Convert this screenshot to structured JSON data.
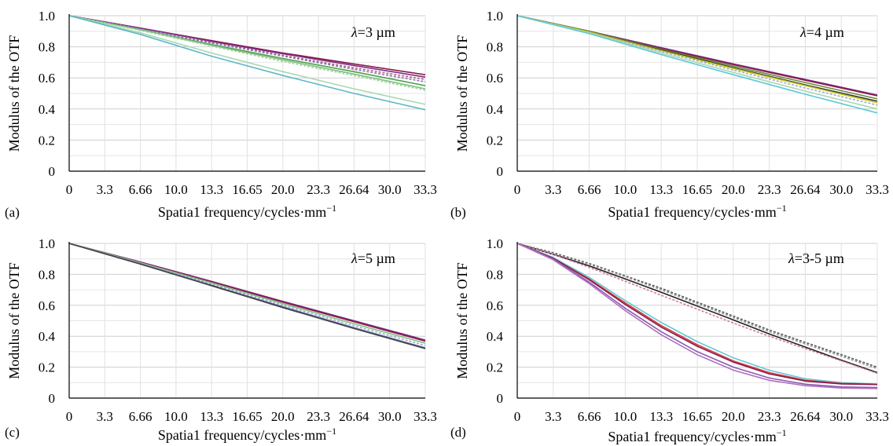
{
  "chart_data": [
    {
      "type": "line",
      "panel_label": "(a)",
      "annotation": {
        "symbol": "λ",
        "text": "=3 µm"
      },
      "xlabel": "Spatia1 frequency/cycles·mm",
      "xlabel_sup": "−1",
      "ylabel": "Modulus of the OTF",
      "x_ticks": [
        "0",
        "3.3",
        "6.66",
        "10.0",
        "13.3",
        "16.65",
        "20.0",
        "23.3",
        "26.64",
        "30.0",
        "33.3"
      ],
      "y_ticks": [
        "0",
        "0.2",
        "0.4",
        "0.6",
        "0.8",
        "1.0"
      ],
      "xlim": [
        0,
        33.3
      ],
      "ylim": [
        0,
        1.0
      ],
      "grid": true,
      "series": [
        {
          "color": "#8b1a4a",
          "dash": "",
          "x": [
            0,
            6.66,
            13.3,
            20.0,
            26.64,
            33.3
          ],
          "y": [
            1.0,
            0.92,
            0.84,
            0.76,
            0.69,
            0.62
          ]
        },
        {
          "color": "#7a2a8a",
          "dash": "",
          "x": [
            0,
            6.66,
            13.3,
            20.0,
            26.64,
            33.3
          ],
          "y": [
            1.0,
            0.92,
            0.835,
            0.755,
            0.68,
            0.605
          ]
        },
        {
          "color": "#b5607a",
          "dash": "3,2",
          "x": [
            0,
            6.66,
            13.3,
            20.0,
            26.64,
            33.3
          ],
          "y": [
            1.0,
            0.915,
            0.83,
            0.745,
            0.665,
            0.59
          ]
        },
        {
          "color": "#8d6fb0",
          "dash": "3,2",
          "x": [
            0,
            6.66,
            13.3,
            20.0,
            26.64,
            33.3
          ],
          "y": [
            1.0,
            0.915,
            0.825,
            0.74,
            0.655,
            0.575
          ]
        },
        {
          "color": "#4aa04a",
          "dash": "",
          "x": [
            0,
            6.66,
            13.3,
            20.0,
            26.64,
            33.3
          ],
          "y": [
            1.0,
            0.91,
            0.815,
            0.725,
            0.64,
            0.55
          ]
        },
        {
          "color": "#7fbf7f",
          "dash": "",
          "x": [
            0,
            6.66,
            13.3,
            20.0,
            26.64,
            33.3
          ],
          "y": [
            1.0,
            0.91,
            0.81,
            0.715,
            0.625,
            0.53
          ]
        },
        {
          "color": "#9fd3a0",
          "dash": "3,2",
          "x": [
            0,
            6.66,
            13.3,
            20.0,
            26.64,
            33.3
          ],
          "y": [
            1.0,
            0.905,
            0.805,
            0.705,
            0.615,
            0.52
          ]
        },
        {
          "color": "#a8d8b0",
          "dash": "",
          "x": [
            0,
            6.66,
            13.3,
            20.0,
            26.64,
            33.3
          ],
          "y": [
            1.0,
            0.89,
            0.76,
            0.64,
            0.53,
            0.43
          ]
        },
        {
          "color": "#5fb8c8",
          "dash": "",
          "x": [
            0,
            6.66,
            13.3,
            20.0,
            26.64,
            33.3
          ],
          "y": [
            1.0,
            0.88,
            0.74,
            0.615,
            0.5,
            0.395
          ]
        }
      ]
    },
    {
      "type": "line",
      "panel_label": "(b)",
      "annotation": {
        "symbol": "λ",
        "text": "=4 µm"
      },
      "xlabel": "Spatia1 frequency/cycles·mm",
      "xlabel_sup": "−1",
      "ylabel": "Modulus of the OTF",
      "x_ticks": [
        "0",
        "3.3",
        "6.66",
        "10.0",
        "13.3",
        "16.65",
        "20.0",
        "23.3",
        "26.64",
        "30.0",
        "33.3"
      ],
      "y_ticks": [
        "0",
        "0.2",
        "0.4",
        "0.6",
        "0.8",
        "1.0"
      ],
      "xlim": [
        0,
        33.3
      ],
      "ylim": [
        0,
        1.0
      ],
      "grid": true,
      "series": [
        {
          "color": "#7a2a8a",
          "dash": "",
          "x": [
            0,
            6.66,
            13.3,
            20.0,
            26.64,
            33.3
          ],
          "y": [
            1.0,
            0.9,
            0.795,
            0.69,
            0.59,
            0.49
          ]
        },
        {
          "color": "#8b1a4a",
          "dash": "",
          "x": [
            0,
            6.66,
            13.3,
            20.0,
            26.64,
            33.3
          ],
          "y": [
            1.0,
            0.9,
            0.79,
            0.685,
            0.585,
            0.485
          ]
        },
        {
          "color": "#6a8a3a",
          "dash": "",
          "x": [
            0,
            6.66,
            13.3,
            20.0,
            26.64,
            33.3
          ],
          "y": [
            1.0,
            0.9,
            0.785,
            0.675,
            0.57,
            0.465
          ]
        },
        {
          "color": "#333333",
          "dash": "",
          "x": [
            0,
            6.66,
            13.3,
            20.0,
            26.64,
            33.3
          ],
          "y": [
            1.0,
            0.895,
            0.78,
            0.665,
            0.555,
            0.45
          ]
        },
        {
          "color": "#c8c820",
          "dash": "",
          "x": [
            0,
            6.66,
            13.3,
            20.0,
            26.64,
            33.3
          ],
          "y": [
            1.0,
            0.895,
            0.775,
            0.66,
            0.55,
            0.44
          ]
        },
        {
          "color": "#9fa8c8",
          "dash": "3,2",
          "x": [
            0,
            6.66,
            13.3,
            20.0,
            26.64,
            33.3
          ],
          "y": [
            1.0,
            0.89,
            0.77,
            0.65,
            0.535,
            0.425
          ]
        },
        {
          "color": "#a8d8b0",
          "dash": "",
          "x": [
            0,
            6.66,
            13.3,
            20.0,
            26.64,
            33.3
          ],
          "y": [
            1.0,
            0.89,
            0.76,
            0.635,
            0.515,
            0.4
          ]
        },
        {
          "color": "#5fc8d8",
          "dash": "",
          "x": [
            0,
            6.66,
            13.3,
            20.0,
            26.64,
            33.3
          ],
          "y": [
            1.0,
            0.885,
            0.75,
            0.62,
            0.495,
            0.375
          ]
        }
      ]
    },
    {
      "type": "line",
      "panel_label": "(c)",
      "annotation": {
        "symbol": "λ",
        "text": "=5 µm"
      },
      "xlabel": "Spatia1 frequency/cycles·mm",
      "xlabel_sup": "−1",
      "ylabel": "Modulus of the OTF",
      "x_ticks": [
        "0",
        "3.3",
        "6.66",
        "10.0",
        "13.3",
        "16.65",
        "20.0",
        "23.3",
        "26.64",
        "30.0",
        "33.3"
      ],
      "y_ticks": [
        "0",
        "0.2",
        "0.4",
        "0.6",
        "0.8",
        "1.0"
      ],
      "xlim": [
        0,
        33.3
      ],
      "ylim": [
        0,
        1.0
      ],
      "grid": true,
      "series": [
        {
          "color": "#7a2a8a",
          "dash": "",
          "x": [
            0,
            6.66,
            13.3,
            20.0,
            26.64,
            33.3
          ],
          "y": [
            1.0,
            0.88,
            0.755,
            0.625,
            0.5,
            0.375
          ]
        },
        {
          "color": "#8b1a4a",
          "dash": "",
          "x": [
            0,
            6.66,
            13.3,
            20.0,
            26.64,
            33.3
          ],
          "y": [
            1.0,
            0.878,
            0.752,
            0.62,
            0.494,
            0.368
          ]
        },
        {
          "color": "#7fbf7f",
          "dash": "",
          "x": [
            0,
            6.66,
            13.3,
            20.0,
            26.64,
            33.3
          ],
          "y": [
            1.0,
            0.875,
            0.745,
            0.61,
            0.48,
            0.355
          ]
        },
        {
          "color": "#9fa8c8",
          "dash": "3,2",
          "x": [
            0,
            6.66,
            13.3,
            20.0,
            26.64,
            33.3
          ],
          "y": [
            1.0,
            0.872,
            0.738,
            0.6,
            0.468,
            0.34
          ]
        },
        {
          "color": "#5a6ab0",
          "dash": "",
          "x": [
            0,
            6.66,
            13.3,
            20.0,
            26.64,
            33.3
          ],
          "y": [
            1.0,
            0.868,
            0.73,
            0.59,
            0.455,
            0.325
          ]
        },
        {
          "color": "#444444",
          "dash": "",
          "x": [
            0,
            6.66,
            13.3,
            20.0,
            26.64,
            33.3
          ],
          "y": [
            1.0,
            0.866,
            0.727,
            0.585,
            0.45,
            0.32
          ]
        }
      ]
    },
    {
      "type": "line",
      "panel_label": "(d)",
      "annotation": {
        "symbol": "λ",
        "text": "=3-5 µm"
      },
      "xlabel": "Spatia1 frequency/cycles·mm",
      "xlabel_sup": "−1",
      "ylabel": "Modulus of the OTF",
      "x_ticks": [
        "0",
        "3.3",
        "6.66",
        "10.0",
        "13.3",
        "16.65",
        "20.0",
        "23.3",
        "26.64",
        "30.0",
        "33.3"
      ],
      "y_ticks": [
        "0",
        "0.2",
        "0.4",
        "0.6",
        "0.8",
        "1.0"
      ],
      "xlim": [
        0,
        33.3
      ],
      "ylim": [
        0,
        1.0
      ],
      "grid": true,
      "series": [
        {
          "color": "#555555",
          "dash": "3,2",
          "x": [
            0,
            3.3,
            6.66,
            10.0,
            13.3,
            16.65,
            20.0,
            23.3,
            26.64,
            30.0,
            33.3
          ],
          "y": [
            1.0,
            0.94,
            0.87,
            0.79,
            0.71,
            0.62,
            0.53,
            0.44,
            0.36,
            0.28,
            0.2
          ]
        },
        {
          "color": "#9a9a9a",
          "dash": "3,2",
          "x": [
            0,
            3.3,
            6.66,
            10.0,
            13.3,
            16.65,
            20.0,
            23.3,
            26.64,
            30.0,
            33.3
          ],
          "y": [
            1.0,
            0.935,
            0.865,
            0.785,
            0.7,
            0.61,
            0.52,
            0.43,
            0.35,
            0.27,
            0.19
          ]
        },
        {
          "color": "#222222",
          "dash": "",
          "x": [
            0,
            3.3,
            6.66,
            10.0,
            13.3,
            16.65,
            20.0,
            23.3,
            26.64,
            30.0,
            33.3
          ],
          "y": [
            1.0,
            0.93,
            0.855,
            0.77,
            0.685,
            0.595,
            0.505,
            0.415,
            0.33,
            0.245,
            0.165
          ]
        },
        {
          "color": "#d07aa0",
          "dash": "3,2",
          "x": [
            0,
            3.3,
            6.66,
            10.0,
            13.3,
            16.65,
            20.0,
            23.3,
            26.64,
            30.0,
            33.3
          ],
          "y": [
            1.0,
            0.93,
            0.845,
            0.755,
            0.665,
            0.575,
            0.485,
            0.4,
            0.32,
            0.24,
            0.16
          ]
        },
        {
          "color": "#5fc8d8",
          "dash": "",
          "x": [
            0,
            3.3,
            6.66,
            10.0,
            13.3,
            16.65,
            20.0,
            23.3,
            26.64,
            30.0,
            33.3
          ],
          "y": [
            1.0,
            0.91,
            0.78,
            0.63,
            0.49,
            0.365,
            0.26,
            0.18,
            0.125,
            0.1,
            0.09
          ]
        },
        {
          "color": "#d04040",
          "dash": "",
          "x": [
            0,
            3.3,
            6.66,
            10.0,
            13.3,
            16.65,
            20.0,
            23.3,
            26.64,
            30.0,
            33.3
          ],
          "y": [
            1.0,
            0.905,
            0.77,
            0.615,
            0.47,
            0.345,
            0.24,
            0.165,
            0.115,
            0.095,
            0.09
          ]
        },
        {
          "color": "#8b1a4a",
          "dash": "",
          "x": [
            0,
            3.3,
            6.66,
            10.0,
            13.3,
            16.65,
            20.0,
            23.3,
            26.64,
            30.0,
            33.3
          ],
          "y": [
            1.0,
            0.905,
            0.765,
            0.605,
            0.46,
            0.335,
            0.232,
            0.157,
            0.11,
            0.092,
            0.088
          ]
        },
        {
          "color": "#8a5ab0",
          "dash": "",
          "x": [
            0,
            3.3,
            6.66,
            10.0,
            13.3,
            16.65,
            20.0,
            23.3,
            26.64,
            30.0,
            33.3
          ],
          "y": [
            1.0,
            0.9,
            0.75,
            0.58,
            0.43,
            0.3,
            0.2,
            0.13,
            0.09,
            0.072,
            0.068
          ]
        },
        {
          "color": "#b070c0",
          "dash": "",
          "x": [
            0,
            3.3,
            6.66,
            10.0,
            13.3,
            16.65,
            20.0,
            23.3,
            26.64,
            30.0,
            33.3
          ],
          "y": [
            1.0,
            0.895,
            0.74,
            0.565,
            0.41,
            0.28,
            0.18,
            0.115,
            0.08,
            0.065,
            0.062
          ]
        }
      ]
    }
  ]
}
